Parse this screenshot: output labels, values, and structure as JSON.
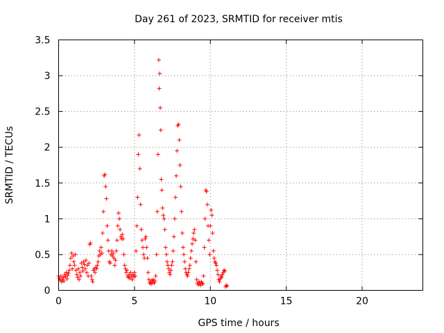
{
  "chart_data": {
    "type": "scatter",
    "title": "Day 261 of 2023, SRMTID for receiver mtis",
    "xlabel": "GPS time / hours",
    "ylabel": "SRMTID / TECUs",
    "xlim": [
      0,
      24
    ],
    "ylim": [
      0,
      3.5
    ],
    "x_ticks": [
      0,
      5,
      10,
      15,
      20
    ],
    "x_tick_labels": [
      "0",
      "5",
      "10",
      "15",
      "20"
    ],
    "y_ticks": [
      0,
      0.5,
      1,
      1.5,
      2,
      2.5,
      3,
      3.5
    ],
    "y_tick_labels": [
      "0",
      "0.5",
      "1",
      "1.5",
      "2",
      "2.5",
      "3",
      "3.5"
    ],
    "grid": true,
    "marker": "+",
    "series": [
      {
        "name": "SRMTID",
        "color": "#ff0000",
        "points": [
          [
            0.0,
            0.2
          ],
          [
            0.05,
            0.17
          ],
          [
            0.1,
            0.14
          ],
          [
            0.15,
            0.2
          ],
          [
            0.2,
            0.12
          ],
          [
            0.25,
            0.15
          ],
          [
            0.3,
            0.18
          ],
          [
            0.35,
            0.13
          ],
          [
            0.4,
            0.22
          ],
          [
            0.45,
            0.19
          ],
          [
            0.5,
            0.25
          ],
          [
            0.55,
            0.16
          ],
          [
            0.6,
            0.21
          ],
          [
            0.65,
            0.24
          ],
          [
            0.7,
            0.28
          ],
          [
            0.75,
            0.35
          ],
          [
            0.8,
            0.45
          ],
          [
            0.85,
            0.52
          ],
          [
            0.9,
            0.3
          ],
          [
            0.95,
            0.48
          ],
          [
            1.0,
            0.4
          ],
          [
            1.05,
            0.35
          ],
          [
            1.1,
            0.5
          ],
          [
            1.15,
            0.28
          ],
          [
            1.2,
            0.22
          ],
          [
            1.25,
            0.18
          ],
          [
            1.3,
            0.3
          ],
          [
            1.35,
            0.15
          ],
          [
            1.4,
            0.25
          ],
          [
            1.45,
            0.2
          ],
          [
            1.5,
            0.38
          ],
          [
            1.55,
            0.32
          ],
          [
            1.6,
            0.27
          ],
          [
            1.65,
            0.4
          ],
          [
            1.7,
            0.36
          ],
          [
            1.75,
            0.3
          ],
          [
            1.8,
            0.42
          ],
          [
            1.85,
            0.25
          ],
          [
            1.9,
            0.35
          ],
          [
            1.95,
            0.2
          ],
          [
            2.0,
            0.38
          ],
          [
            2.05,
            0.64
          ],
          [
            2.1,
            0.66
          ],
          [
            2.15,
            0.2
          ],
          [
            2.2,
            0.15
          ],
          [
            2.25,
            0.12
          ],
          [
            2.3,
            0.28
          ],
          [
            2.35,
            0.3
          ],
          [
            2.4,
            0.25
          ],
          [
            2.45,
            0.32
          ],
          [
            2.5,
            0.3
          ],
          [
            2.55,
            0.35
          ],
          [
            2.6,
            0.4
          ],
          [
            2.65,
            0.48
          ],
          [
            2.7,
            0.55
          ],
          [
            2.75,
            0.5
          ],
          [
            2.8,
            0.6
          ],
          [
            2.85,
            0.52
          ],
          [
            2.9,
            0.8
          ],
          [
            2.95,
            1.1
          ],
          [
            3.0,
            1.6
          ],
          [
            3.05,
            1.62
          ],
          [
            3.1,
            1.45
          ],
          [
            3.15,
            1.28
          ],
          [
            3.2,
            0.9
          ],
          [
            3.25,
            0.7
          ],
          [
            3.3,
            0.55
          ],
          [
            3.35,
            0.4
          ],
          [
            3.4,
            0.38
          ],
          [
            3.45,
            0.5
          ],
          [
            3.5,
            0.55
          ],
          [
            3.55,
            0.48
          ],
          [
            3.6,
            0.52
          ],
          [
            3.65,
            0.45
          ],
          [
            3.7,
            0.35
          ],
          [
            3.75,
            0.42
          ],
          [
            3.8,
            0.55
          ],
          [
            3.85,
            0.7
          ],
          [
            3.9,
            0.9
          ],
          [
            3.95,
            1.08
          ],
          [
            4.0,
            1.0
          ],
          [
            4.05,
            0.85
          ],
          [
            4.1,
            0.75
          ],
          [
            4.15,
            0.72
          ],
          [
            4.2,
            0.78
          ],
          [
            4.25,
            0.72
          ],
          [
            4.3,
            0.5
          ],
          [
            4.35,
            0.35
          ],
          [
            4.4,
            0.3
          ],
          [
            4.45,
            0.25
          ],
          [
            4.5,
            0.28
          ],
          [
            4.55,
            0.2
          ],
          [
            4.6,
            0.18
          ],
          [
            4.65,
            0.22
          ],
          [
            4.7,
            0.17
          ],
          [
            4.75,
            0.25
          ],
          [
            4.8,
            0.2
          ],
          [
            4.85,
            0.15
          ],
          [
            4.9,
            0.22
          ],
          [
            4.95,
            0.19
          ],
          [
            5.0,
            0.25
          ],
          [
            5.05,
            0.2
          ],
          [
            5.1,
            0.55
          ],
          [
            5.15,
            0.9
          ],
          [
            5.2,
            1.3
          ],
          [
            5.25,
            1.9
          ],
          [
            5.3,
            2.17
          ],
          [
            5.35,
            1.7
          ],
          [
            5.4,
            1.2
          ],
          [
            5.45,
            0.85
          ],
          [
            5.5,
            0.7
          ],
          [
            5.55,
            0.6
          ],
          [
            5.6,
            0.5
          ],
          [
            5.65,
            0.45
          ],
          [
            5.7,
            0.72
          ],
          [
            5.75,
            0.75
          ],
          [
            5.8,
            0.6
          ],
          [
            5.85,
            0.45
          ],
          [
            5.9,
            0.25
          ],
          [
            5.95,
            0.15
          ],
          [
            6.0,
            0.1
          ],
          [
            6.05,
            0.12
          ],
          [
            6.1,
            0.09
          ],
          [
            6.15,
            0.14
          ],
          [
            6.2,
            0.11
          ],
          [
            6.25,
            0.15
          ],
          [
            6.3,
            0.1
          ],
          [
            6.35,
            0.13
          ],
          [
            6.4,
            0.2
          ],
          [
            6.45,
            0.5
          ],
          [
            6.5,
            1.1
          ],
          [
            6.55,
            1.9
          ],
          [
            6.6,
            3.22
          ],
          [
            6.63,
            2.82
          ],
          [
            6.66,
            3.03
          ],
          [
            6.7,
            2.55
          ],
          [
            6.73,
            2.24
          ],
          [
            6.76,
            1.55
          ],
          [
            6.8,
            1.4
          ],
          [
            6.85,
            1.15
          ],
          [
            6.9,
            1.05
          ],
          [
            6.95,
            1.0
          ],
          [
            7.0,
            0.85
          ],
          [
            7.05,
            0.6
          ],
          [
            7.1,
            0.5
          ],
          [
            7.15,
            0.4
          ],
          [
            7.2,
            0.35
          ],
          [
            7.25,
            0.3
          ],
          [
            7.3,
            0.25
          ],
          [
            7.35,
            0.22
          ],
          [
            7.4,
            0.28
          ],
          [
            7.45,
            0.35
          ],
          [
            7.5,
            0.4
          ],
          [
            7.55,
            0.55
          ],
          [
            7.6,
            0.75
          ],
          [
            7.65,
            1.0
          ],
          [
            7.7,
            1.3
          ],
          [
            7.75,
            1.6
          ],
          [
            7.8,
            1.95
          ],
          [
            7.85,
            2.3
          ],
          [
            7.9,
            2.32
          ],
          [
            7.95,
            2.1
          ],
          [
            8.0,
            1.75
          ],
          [
            8.05,
            1.45
          ],
          [
            8.1,
            1.1
          ],
          [
            8.15,
            0.8
          ],
          [
            8.2,
            0.6
          ],
          [
            8.25,
            0.5
          ],
          [
            8.3,
            0.4
          ],
          [
            8.35,
            0.3
          ],
          [
            8.4,
            0.25
          ],
          [
            8.45,
            0.22
          ],
          [
            8.5,
            0.2
          ],
          [
            8.55,
            0.25
          ],
          [
            8.6,
            0.3
          ],
          [
            8.65,
            0.35
          ],
          [
            8.7,
            0.45
          ],
          [
            8.75,
            0.55
          ],
          [
            8.8,
            0.65
          ],
          [
            8.85,
            0.72
          ],
          [
            8.9,
            0.8
          ],
          [
            8.95,
            0.85
          ],
          [
            9.0,
            0.7
          ],
          [
            9.05,
            0.4
          ],
          [
            9.1,
            0.15
          ],
          [
            9.15,
            0.1
          ],
          [
            9.2,
            0.08
          ],
          [
            9.25,
            0.12
          ],
          [
            9.3,
            0.1
          ],
          [
            9.35,
            0.07
          ],
          [
            9.4,
            0.12
          ],
          [
            9.45,
            0.1
          ],
          [
            9.5,
            0.09
          ],
          [
            9.55,
            0.2
          ],
          [
            9.6,
            0.6
          ],
          [
            9.65,
            1.0
          ],
          [
            9.7,
            1.4
          ],
          [
            9.75,
            1.38
          ],
          [
            9.8,
            1.2
          ],
          [
            9.85,
            0.9
          ],
          [
            9.9,
            0.7
          ],
          [
            9.95,
            0.5
          ],
          [
            10.0,
            0.9
          ],
          [
            10.05,
            1.12
          ],
          [
            10.1,
            1.05
          ],
          [
            10.15,
            0.8
          ],
          [
            10.2,
            0.55
          ],
          [
            10.25,
            0.45
          ],
          [
            10.3,
            0.4
          ],
          [
            10.35,
            0.38
          ],
          [
            10.4,
            0.35
          ],
          [
            10.45,
            0.28
          ],
          [
            10.5,
            0.22
          ],
          [
            10.55,
            0.15
          ],
          [
            10.6,
            0.12
          ],
          [
            10.65,
            0.16
          ],
          [
            10.7,
            0.2
          ],
          [
            10.75,
            0.18
          ],
          [
            10.8,
            0.22
          ],
          [
            10.85,
            0.25
          ],
          [
            10.9,
            0.28
          ],
          [
            10.95,
            0.27
          ],
          [
            11.0,
            0.05
          ],
          [
            11.05,
            0.07
          ],
          [
            11.1,
            0.06
          ]
        ]
      }
    ]
  }
}
